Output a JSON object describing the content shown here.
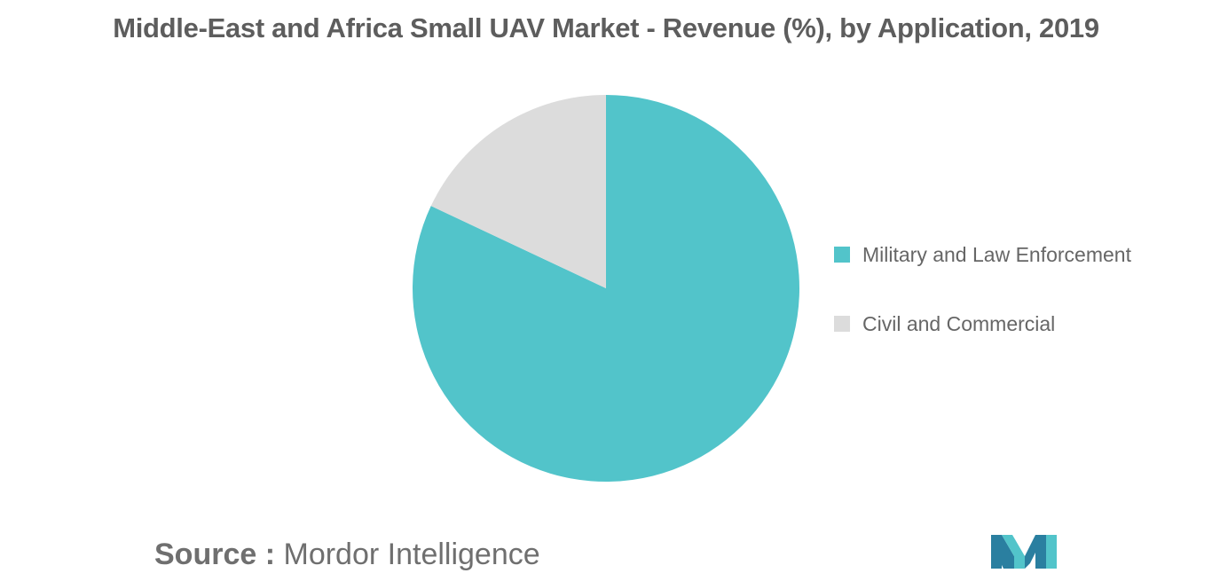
{
  "chart_data": {
    "type": "pie",
    "title": "Middle-East and Africa Small UAV Market - Revenue (%), by Application, 2019",
    "slices": [
      {
        "label": "Military and Law Enforcement",
        "value": 82,
        "color": "#52c4ca"
      },
      {
        "label": "Civil and Commercial",
        "value": 18,
        "color": "#dcdcdc"
      }
    ],
    "legend_position": "right"
  },
  "source": {
    "label": "Source :",
    "text": "Mordor Intelligence"
  },
  "logo": {
    "name": "mordor-intelligence-logo",
    "colors": [
      "#2a7fa0",
      "#52c4ca"
    ]
  }
}
